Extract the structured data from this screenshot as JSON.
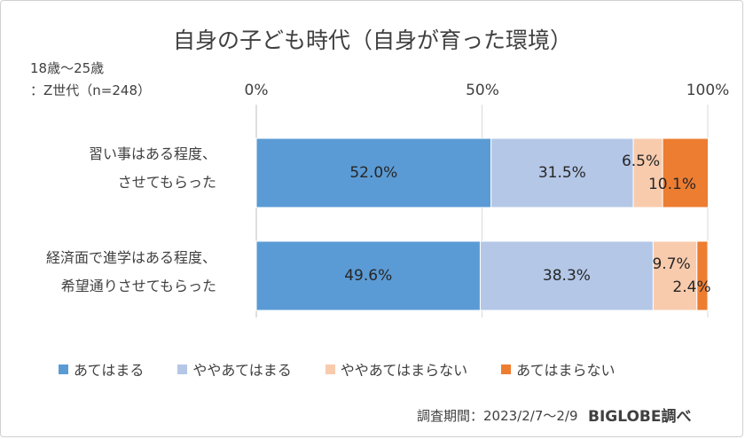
{
  "title": "自身の子ども時代（自身が育った環境）",
  "group_note_line1": "18歳〜25歳",
  "group_note_line2": "：Z世代（n=248）",
  "footer_period": "調査期間：2023/2/7〜2/9",
  "footer_brand": "BIGLOBE調べ",
  "chart_data": {
    "type": "bar",
    "orientation": "horizontal",
    "stacked": true,
    "categories": [
      [
        "習い事はある程度、",
        "させてもらった"
      ],
      [
        "経済面で進学はある程度、",
        "希望通りさせてもらった"
      ]
    ],
    "series": [
      {
        "name": "あてはまる",
        "color": "#5b9bd5",
        "values": [
          52.0,
          49.6
        ],
        "labels": [
          "52.0%",
          "49.6%"
        ]
      },
      {
        "name": "ややあてはまる",
        "color": "#b4c7e7",
        "values": [
          31.5,
          38.3
        ],
        "labels": [
          "31.5%",
          "38.3%"
        ]
      },
      {
        "name": "ややあてはまらない",
        "color": "#f8cbad",
        "values": [
          6.5,
          9.7
        ],
        "labels": [
          "6.5%",
          "9.7%"
        ]
      },
      {
        "name": "あてはまらない",
        "color": "#ed7d31",
        "values": [
          10.1,
          2.4
        ],
        "labels": [
          "10.1%",
          "2.4%"
        ]
      }
    ],
    "x_ticks": [
      "0%",
      "50%",
      "100%"
    ],
    "xlim": [
      0,
      100
    ],
    "legend_position": "bottom"
  }
}
